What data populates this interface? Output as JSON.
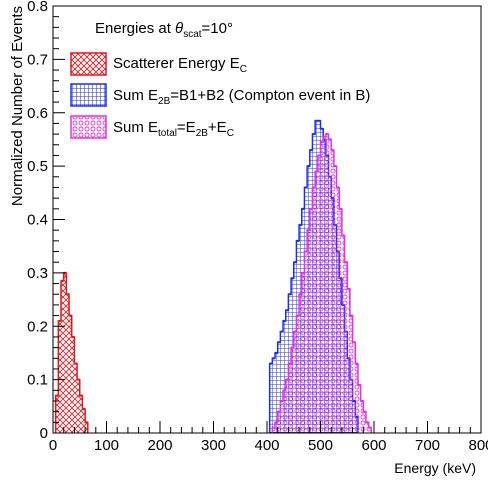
{
  "chart_data": {
    "type": "histogram",
    "xlabel": "Energy (keV)",
    "ylabel": "Normalized Number of Events",
    "xlim": [
      0,
      800
    ],
    "ylim": [
      0,
      0.8
    ],
    "x_ticks": [
      0,
      100,
      200,
      300,
      400,
      500,
      600,
      700,
      800
    ],
    "y_ticks": [
      0,
      0.1,
      0.2,
      0.3,
      0.4,
      0.5,
      0.6,
      0.7,
      0.8
    ],
    "x_tick_labels": [
      "0",
      "100",
      "200",
      "300",
      "400",
      "500",
      "600",
      "700",
      "800"
    ],
    "y_tick_labels": [
      "0",
      "0.1",
      "0.2",
      "0.3",
      "0.4",
      "0.5",
      "0.6",
      "0.7",
      "0.8"
    ],
    "bin_width": 5,
    "legend": {
      "header": "Energies at θscat=10°",
      "position": "top-left",
      "entries": [
        {
          "label": "Scatterer Energy E",
          "sub": "C"
        },
        {
          "label": "Sum E",
          "sub": "2B",
          "rest": "=B1+B2 (Compton event in B)"
        },
        {
          "label": "Sum E",
          "sub": "total",
          "rest": "=E",
          "sub2": "2B",
          "rest2": "+E",
          "sub3": "C"
        }
      ]
    },
    "series": [
      {
        "name": "Scatterer Energy EC",
        "color": "#e3161b",
        "pattern": "crosshatch",
        "x_start": 5,
        "values": [
          0.07,
          0.21,
          0.285,
          0.3,
          0.26,
          0.22,
          0.18,
          0.13,
          0.1,
          0.07,
          0.045,
          0.02
        ]
      },
      {
        "name": "Sum E2B=B1+B2 (Compton event in B)",
        "color": "#1b2ee8",
        "pattern": "grid",
        "x_start": 405,
        "values": [
          0.13,
          0.14,
          0.15,
          0.17,
          0.19,
          0.21,
          0.23,
          0.26,
          0.29,
          0.32,
          0.36,
          0.39,
          0.42,
          0.46,
          0.5,
          0.53,
          0.56,
          0.585,
          0.585,
          0.57,
          0.55,
          0.52,
          0.48,
          0.44,
          0.39,
          0.34,
          0.29,
          0.24,
          0.19,
          0.14,
          0.1,
          0.06,
          0.03
        ]
      },
      {
        "name": "Sum Etotal=E2B+EC",
        "color": "#e82ee0",
        "pattern": "circles",
        "x_start": 410,
        "values": [
          0.01,
          0.02,
          0.04,
          0.06,
          0.08,
          0.1,
          0.13,
          0.16,
          0.19,
          0.22,
          0.26,
          0.3,
          0.34,
          0.38,
          0.42,
          0.46,
          0.49,
          0.52,
          0.545,
          0.555,
          0.56,
          0.55,
          0.53,
          0.5,
          0.46,
          0.42,
          0.37,
          0.32,
          0.27,
          0.22,
          0.17,
          0.13,
          0.09,
          0.06,
          0.04,
          0.02,
          0.01
        ]
      }
    ]
  }
}
